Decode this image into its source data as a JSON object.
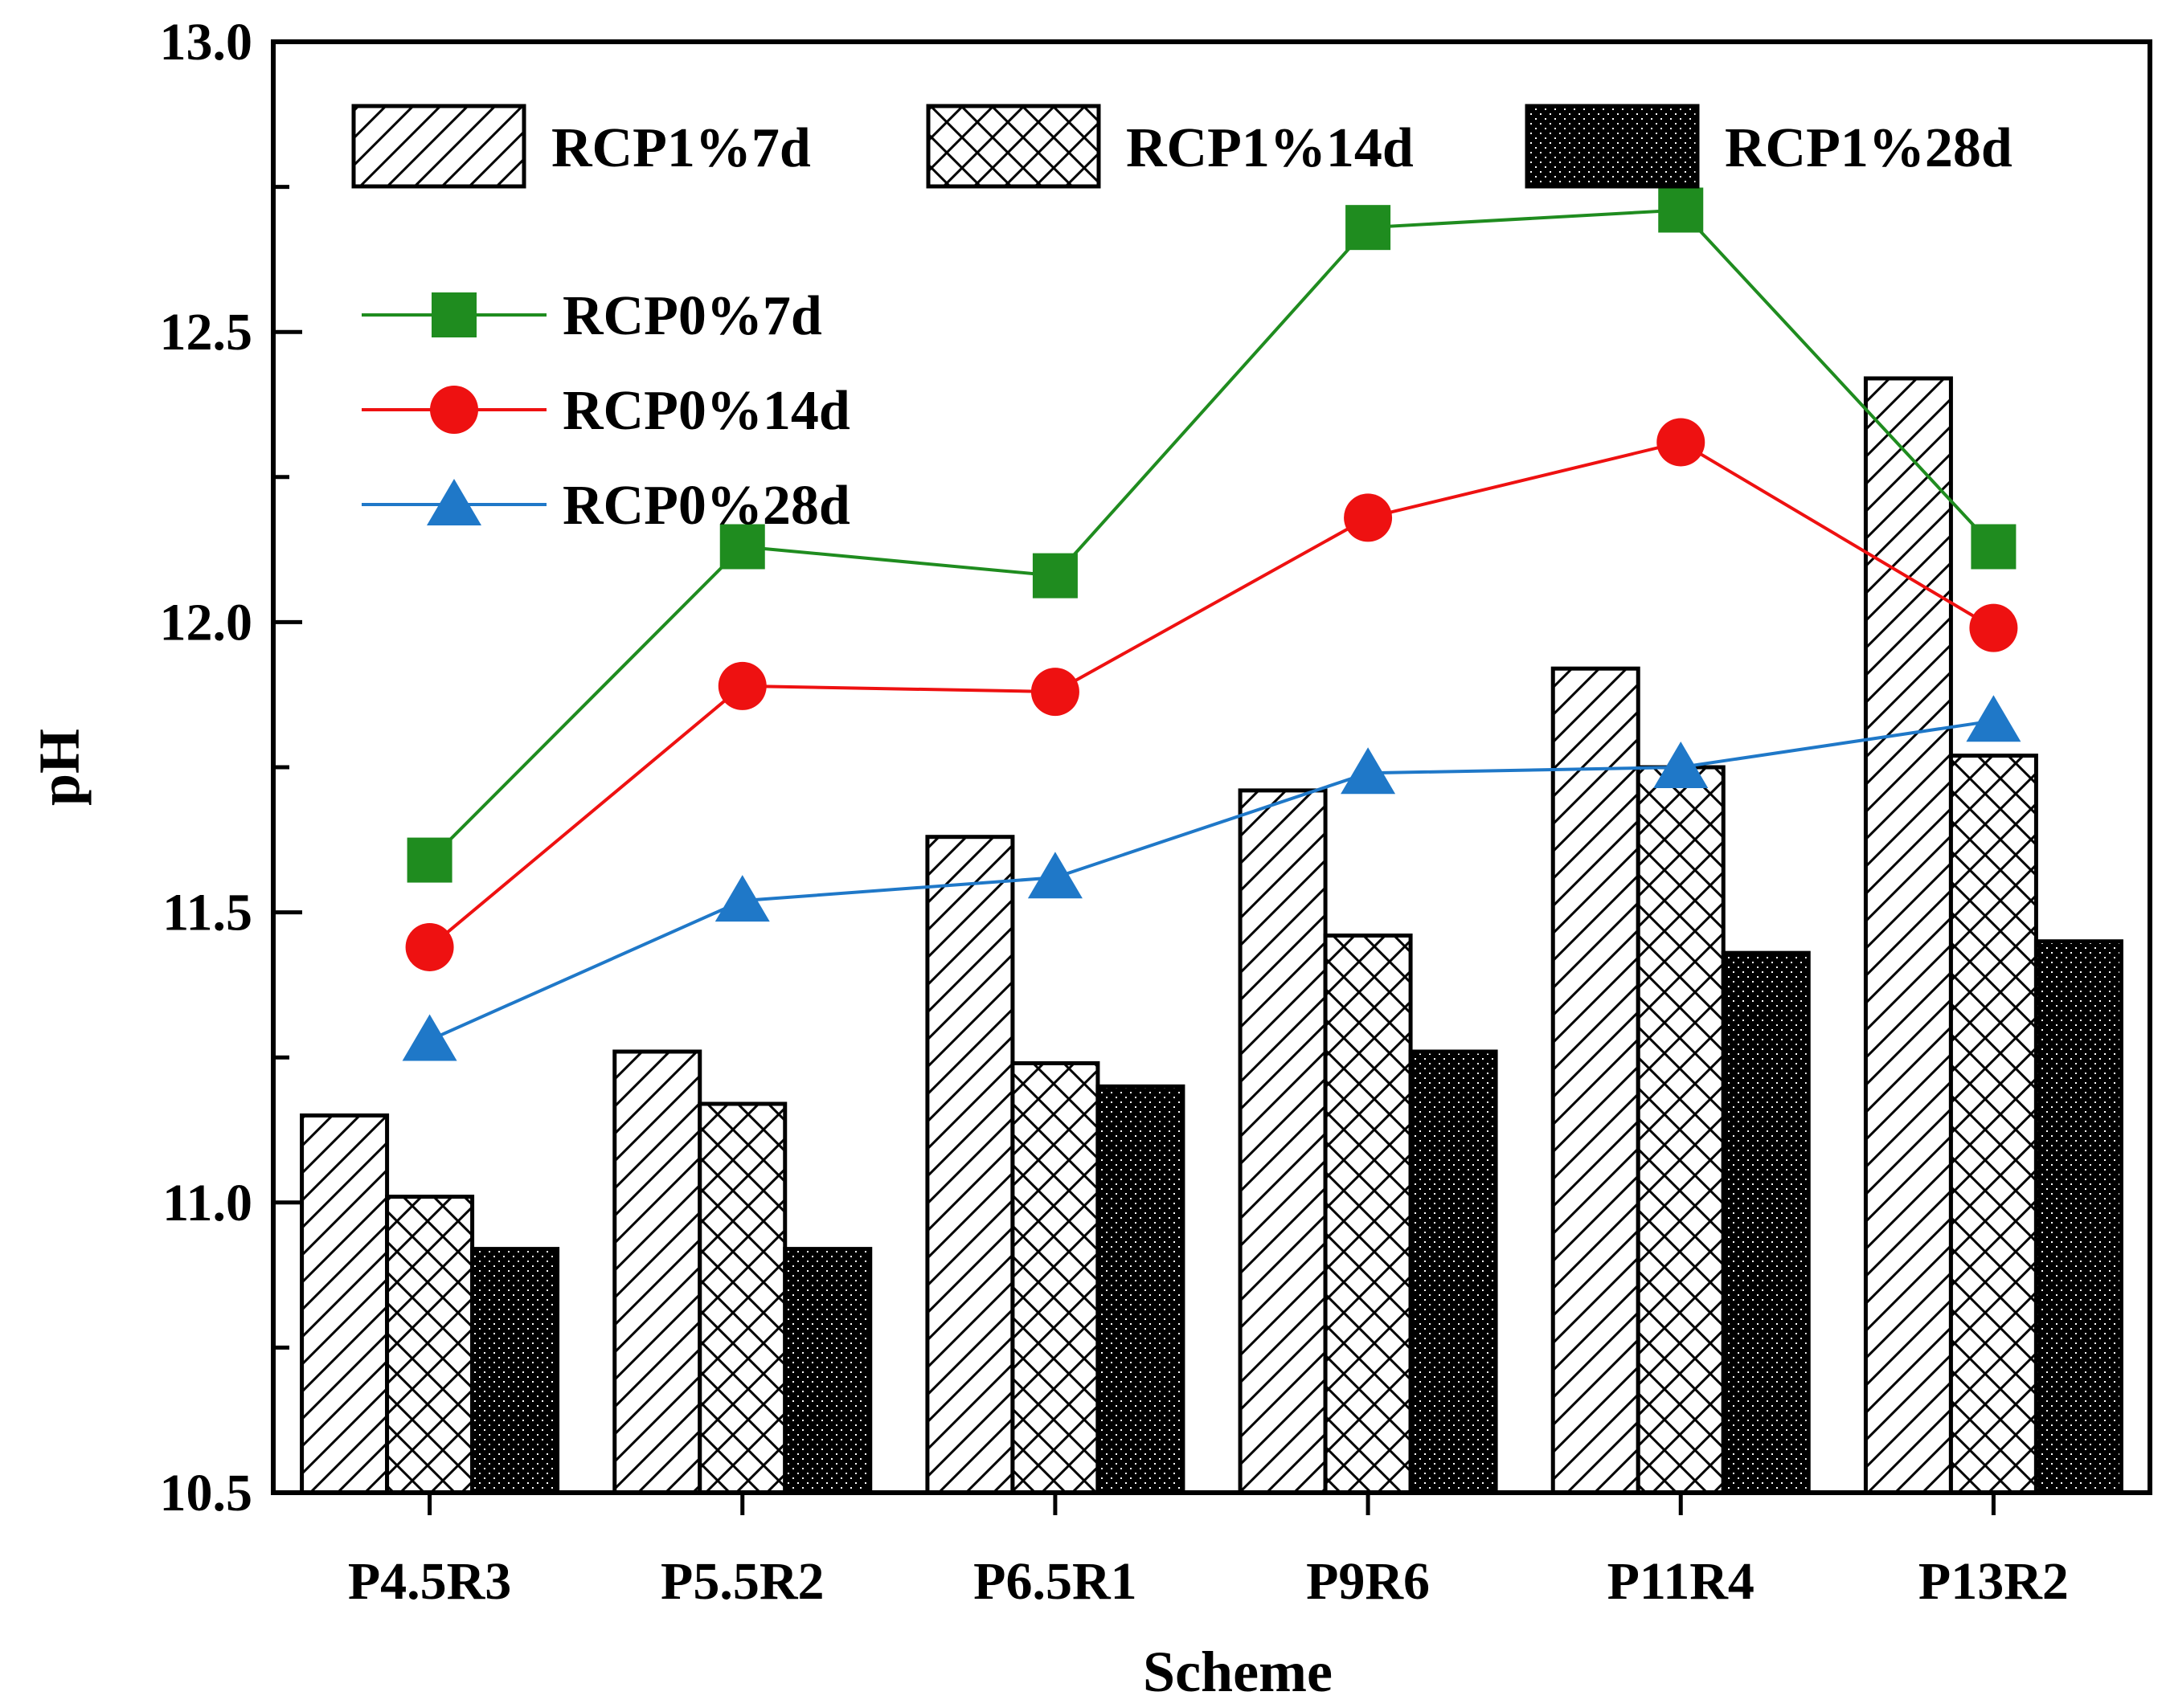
{
  "chart_data": {
    "type": "bar",
    "xlabel": "Scheme",
    "ylabel": "pH",
    "ylim": [
      10.5,
      13.0
    ],
    "yticks": [
      "10.5",
      "11.0",
      "11.5",
      "12.0",
      "12.5",
      "13.0"
    ],
    "categories": [
      "P4.5R3",
      "P5.5R2",
      "P6.5R1",
      "P9R6",
      "P11R4",
      "P13R2"
    ],
    "bar_series": [
      {
        "name": "RCP1%7d",
        "pattern": "diagonal-hatch",
        "values": [
          11.15,
          11.26,
          11.63,
          11.71,
          11.92,
          12.42
        ]
      },
      {
        "name": "RCP1%14d",
        "pattern": "cross-hatch",
        "values": [
          11.01,
          11.17,
          11.24,
          11.46,
          11.75,
          11.77
        ]
      },
      {
        "name": "RCP1%28d",
        "pattern": "black-dotted",
        "values": [
          10.92,
          10.92,
          11.2,
          11.26,
          11.43,
          11.45
        ]
      }
    ],
    "line_series": [
      {
        "name": "RCP0%7d",
        "color": "#1f8c1f",
        "marker": "square",
        "values": [
          11.59,
          12.13,
          12.08,
          12.68,
          12.71,
          12.13
        ]
      },
      {
        "name": "RCP0%14d",
        "color": "#ee1111",
        "marker": "circle",
        "values": [
          11.44,
          11.89,
          11.88,
          12.18,
          12.31,
          11.99
        ]
      },
      {
        "name": "RCP0%28d",
        "color": "#1f78c8",
        "marker": "triangle",
        "values": [
          11.28,
          11.52,
          11.56,
          11.74,
          11.75,
          11.83
        ]
      }
    ],
    "legend_position": "top-left"
  }
}
